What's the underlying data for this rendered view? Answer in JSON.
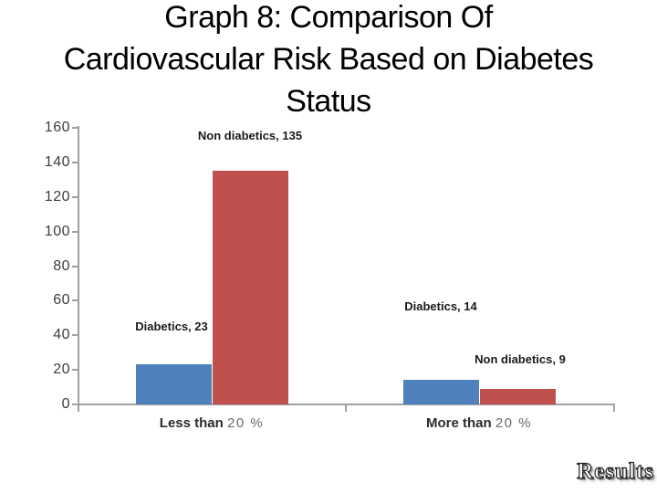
{
  "slide": {
    "title_lines": [
      "Graph 8: Comparison Of",
      "Cardiovascular Risk Based on Diabetes",
      "Status"
    ],
    "footer_wordart": "Results"
  },
  "colors": {
    "diabetics_bar": "#4F81BD",
    "non_diabetics_bar": "#C0504D",
    "axis_line": "#A0A0A0",
    "tick_label": "#3D3D3D",
    "data_label": "#1A1A1A"
  },
  "chart_data": {
    "type": "bar",
    "title": "",
    "xlabel": "",
    "ylabel": "",
    "categories": [
      "Less than 20 %",
      "More than 20 %"
    ],
    "category_label_parts": [
      {
        "words": "Less than",
        "num": "20 %"
      },
      {
        "words": "More than",
        "num": "20 %"
      }
    ],
    "series": [
      {
        "name": "Diabetics",
        "color": "#4F81BD",
        "values": [
          23,
          14
        ]
      },
      {
        "name": "Non diabetics",
        "color": "#C0504D",
        "values": [
          135,
          9
        ]
      }
    ],
    "data_labels": {
      "diabetics_less": "Diabetics, 23",
      "non_diabetics_less": "Non diabetics, 135",
      "diabetics_more": "Diabetics, 14",
      "non_diabetics_more": "Non diabetics, 9"
    },
    "ylim": [
      0,
      160
    ],
    "yticks": [
      0,
      20,
      40,
      60,
      80,
      100,
      120,
      140,
      160
    ],
    "grid": false,
    "legend": "none"
  }
}
